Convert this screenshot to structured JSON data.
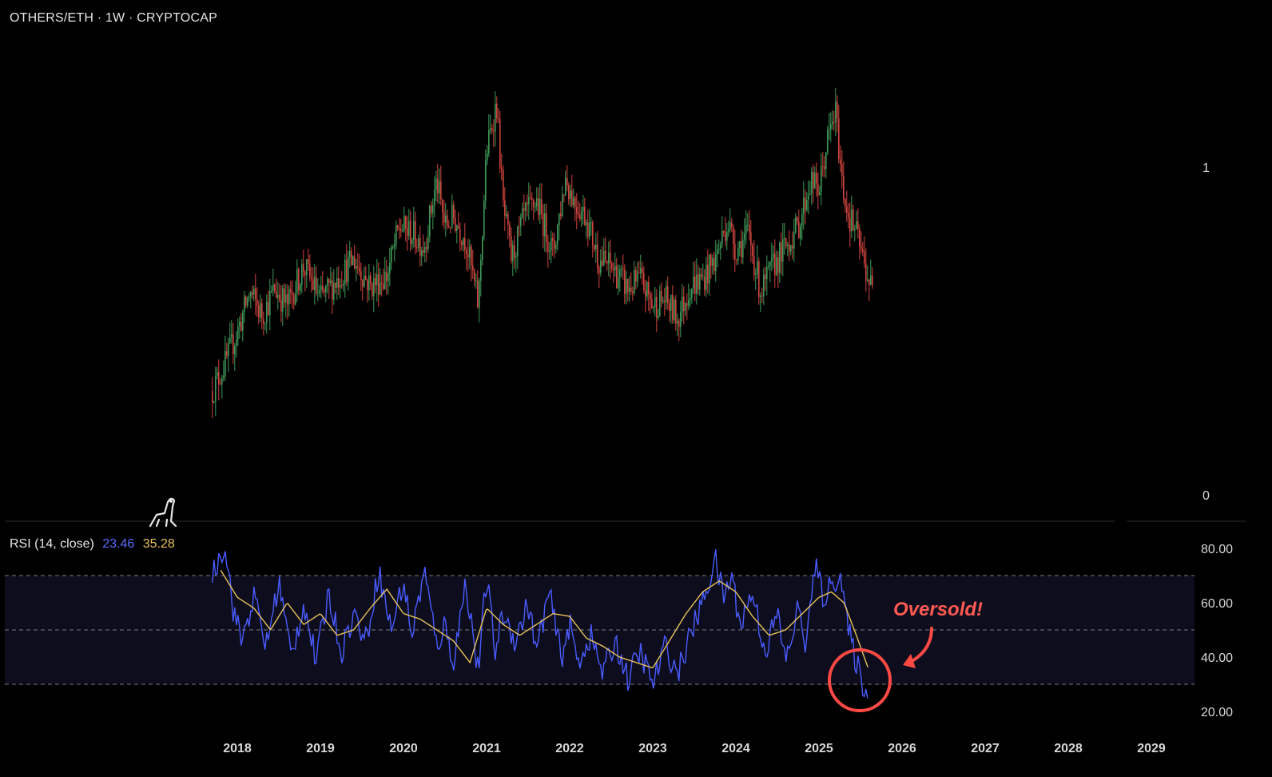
{
  "header": {
    "title": "OTHERS/ETH · 1W · CRYPTOCAP"
  },
  "rsi_legend": {
    "label": "RSI (14, close)",
    "value_rsi": "23.46",
    "value_ma": "35.28"
  },
  "annotation": {
    "text": "Oversold!"
  },
  "colors": {
    "background": "#000000",
    "candle_up": "#3f9a5a",
    "candle_down": "#d2453f",
    "rsi_line": "#4a5cff",
    "rsi_ma": "#e8c25a",
    "rsi_band": "#0d0d1d",
    "annotation": "#ff4a44"
  },
  "chart_data": [
    {
      "type": "candlestick",
      "title": "OTHERS/ETH · 1W · CRYPTOCAP",
      "y_ticks": [
        "1",
        "0"
      ],
      "x_ticks": [
        "2018",
        "2019",
        "2020",
        "2021",
        "2022",
        "2023",
        "2024",
        "2025",
        "2026",
        "2027",
        "2028",
        "2029"
      ],
      "x_range": [
        2017.7,
        2025.65
      ],
      "ylim": [
        0,
        1.35
      ],
      "approx_close_series": {
        "x": [
          2017.7,
          2017.85,
          2018.0,
          2018.15,
          2018.3,
          2018.45,
          2018.6,
          2018.8,
          2019.0,
          2019.2,
          2019.4,
          2019.6,
          2019.8,
          2019.95,
          2020.1,
          2020.25,
          2020.4,
          2020.5,
          2020.6,
          2020.75,
          2020.9,
          2021.0,
          2021.12,
          2021.2,
          2021.3,
          2021.45,
          2021.6,
          2021.8,
          2021.95,
          2022.05,
          2022.2,
          2022.35,
          2022.5,
          2022.7,
          2022.85,
          2023.0,
          2023.15,
          2023.3,
          2023.45,
          2023.6,
          2023.75,
          2023.9,
          2024.0,
          2024.15,
          2024.3,
          2024.45,
          2024.6,
          2024.75,
          2024.9,
          2025.0,
          2025.1,
          2025.2,
          2025.28,
          2025.35,
          2025.45,
          2025.55,
          2025.65
        ],
        "close": [
          0.32,
          0.4,
          0.5,
          0.62,
          0.55,
          0.63,
          0.58,
          0.7,
          0.6,
          0.66,
          0.72,
          0.64,
          0.67,
          0.82,
          0.8,
          0.76,
          0.96,
          0.82,
          0.85,
          0.78,
          0.58,
          1.05,
          1.2,
          0.88,
          0.72,
          0.85,
          0.9,
          0.74,
          0.97,
          0.9,
          0.85,
          0.72,
          0.7,
          0.63,
          0.66,
          0.58,
          0.6,
          0.54,
          0.64,
          0.66,
          0.72,
          0.84,
          0.75,
          0.8,
          0.62,
          0.7,
          0.76,
          0.82,
          0.96,
          0.93,
          1.08,
          1.17,
          0.95,
          0.86,
          0.8,
          0.7,
          0.62
        ]
      }
    },
    {
      "type": "line",
      "title": "RSI (14, close)",
      "y_ticks": [
        "80.00",
        "60.00",
        "40.00",
        "20.00"
      ],
      "ylim": [
        14,
        84
      ],
      "bands": [
        30,
        50,
        70
      ],
      "series": [
        {
          "name": "RSI",
          "x": [
            2017.7,
            2017.85,
            2017.95,
            2018.05,
            2018.2,
            2018.35,
            2018.5,
            2018.65,
            2018.8,
            2018.95,
            2019.1,
            2019.25,
            2019.4,
            2019.55,
            2019.7,
            2019.85,
            2020.0,
            2020.1,
            2020.25,
            2020.4,
            2020.5,
            2020.6,
            2020.75,
            2020.9,
            2021.0,
            2021.1,
            2021.2,
            2021.35,
            2021.5,
            2021.6,
            2021.75,
            2021.9,
            2022.0,
            2022.1,
            2022.25,
            2022.4,
            2022.55,
            2022.7,
            2022.85,
            2023.0,
            2023.15,
            2023.3,
            2023.45,
            2023.6,
            2023.75,
            2023.85,
            2023.95,
            2024.05,
            2024.2,
            2024.35,
            2024.5,
            2024.6,
            2024.75,
            2024.85,
            2024.95,
            2025.05,
            2025.15,
            2025.25,
            2025.35,
            2025.45,
            2025.55,
            2025.6
          ],
          "values": [
            70,
            82,
            58,
            46,
            62,
            44,
            68,
            40,
            60,
            38,
            64,
            42,
            56,
            46,
            72,
            50,
            68,
            48,
            72,
            44,
            52,
            38,
            68,
            34,
            70,
            42,
            56,
            46,
            60,
            42,
            64,
            40,
            52,
            38,
            48,
            34,
            46,
            32,
            42,
            30,
            44,
            34,
            48,
            60,
            76,
            62,
            70,
            52,
            64,
            42,
            56,
            38,
            58,
            44,
            74,
            62,
            66,
            72,
            50,
            38,
            28,
            23.46
          ]
        },
        {
          "name": "RSI-based MA",
          "x": [
            2017.8,
            2018.0,
            2018.2,
            2018.4,
            2018.6,
            2018.8,
            2019.0,
            2019.2,
            2019.4,
            2019.6,
            2019.8,
            2020.0,
            2020.2,
            2020.4,
            2020.6,
            2020.8,
            2021.0,
            2021.2,
            2021.4,
            2021.6,
            2021.8,
            2022.0,
            2022.2,
            2022.4,
            2022.6,
            2022.8,
            2023.0,
            2023.2,
            2023.4,
            2023.6,
            2023.8,
            2024.0,
            2024.2,
            2024.4,
            2024.6,
            2024.8,
            2025.0,
            2025.15,
            2025.3,
            2025.45,
            2025.6
          ],
          "values": [
            72,
            62,
            58,
            50,
            60,
            52,
            56,
            48,
            50,
            58,
            65,
            56,
            54,
            50,
            46,
            38,
            58,
            52,
            48,
            52,
            56,
            55,
            47,
            44,
            40,
            38,
            36,
            46,
            56,
            64,
            68,
            64,
            55,
            48,
            50,
            56,
            62,
            64,
            60,
            48,
            35.28
          ]
        }
      ]
    }
  ]
}
